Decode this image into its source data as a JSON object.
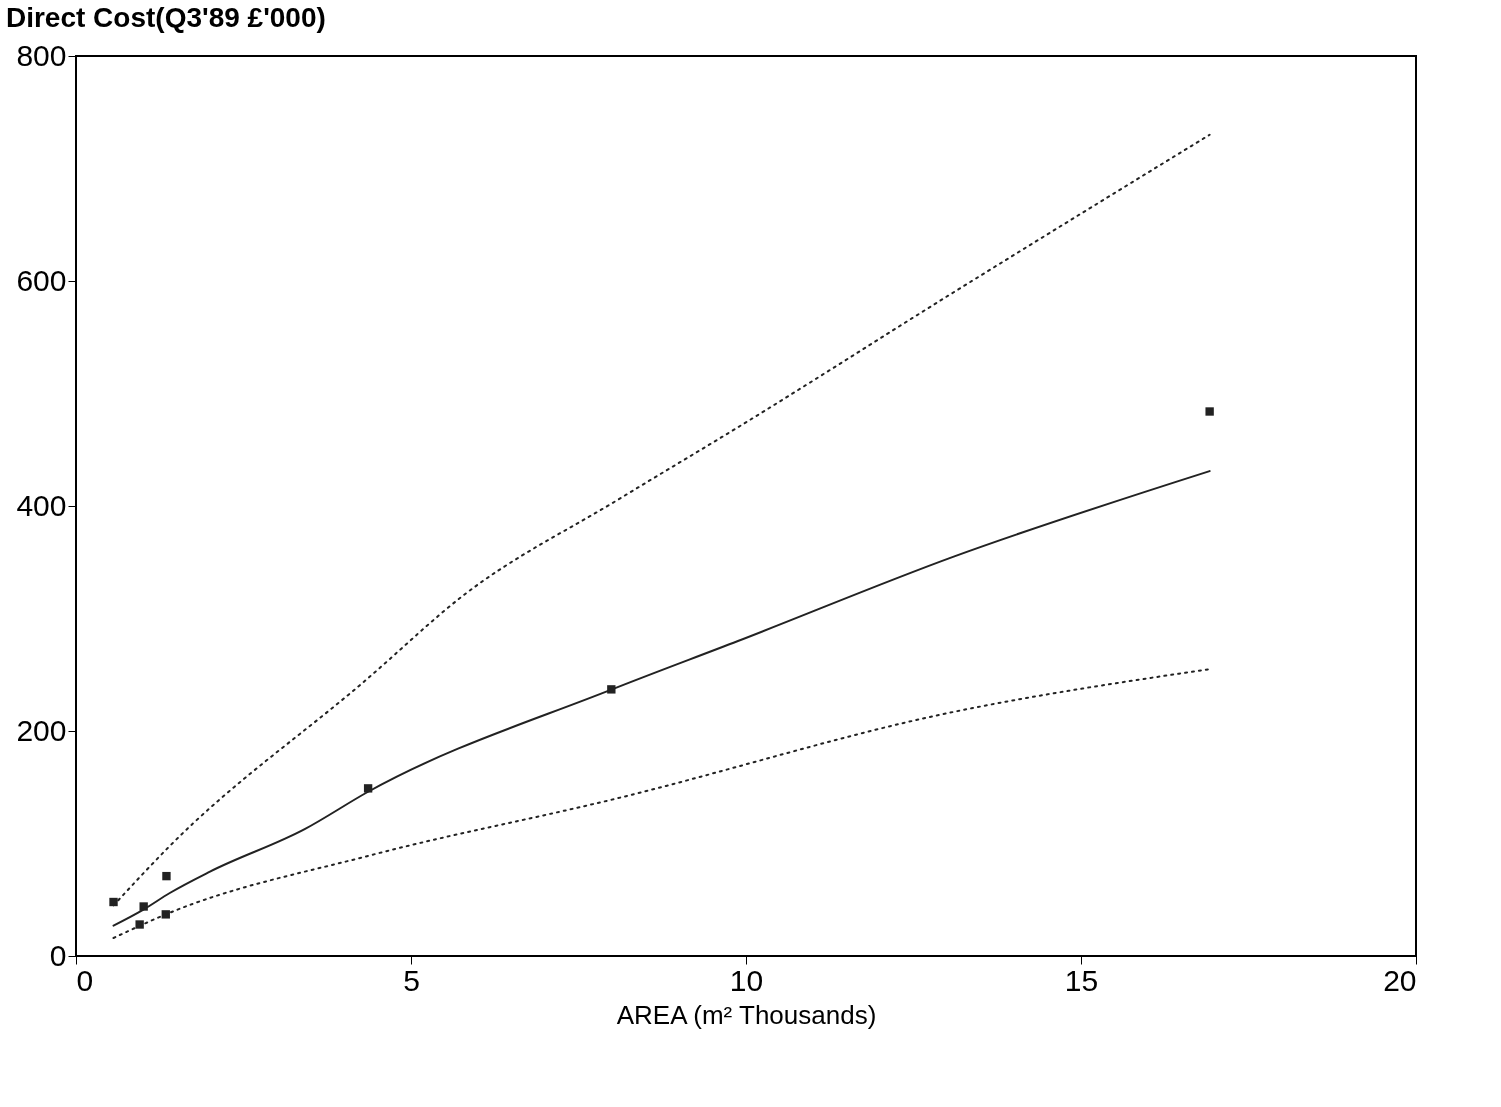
{
  "chart_data": {
    "type": "scatter",
    "ylabel": "Direct Cost(Q3'89 £'000)",
    "xlabel": "AREA   (m² Thousands)",
    "xlim": [
      0,
      20
    ],
    "xticks": [
      0,
      5,
      10,
      15,
      20
    ],
    "ylim": [
      0,
      800
    ],
    "yticks": [
      0,
      200,
      400,
      600,
      800
    ],
    "grid": false,
    "series": [
      {
        "marker": "square",
        "color": "#222222",
        "x": [
          0.56,
          0.95,
          1.01,
          1.34,
          1.35,
          4.36,
          7.99,
          16.92
        ],
        "values": [
          48,
          28,
          44,
          37,
          71,
          149,
          237,
          484
        ]
      },
      {
        "type": "line",
        "line_style": "solid",
        "color": "#222222",
        "x": [
          0.56,
          1.0,
          1.4,
          2.0,
          3.42,
          4.36,
          8.0,
          9.88,
          13.1,
          16.92
        ],
        "values": [
          27,
          41,
          56,
          75,
          113,
          146,
          237,
          280,
          355,
          431
        ]
      },
      {
        "type": "line",
        "line_style": "dotted",
        "color": "#222222",
        "x": [
          0.56,
          1.37,
          4.36,
          5.77,
          8.1,
          9.88,
          13.1,
          16.92
        ],
        "values": [
          45,
          96,
          247,
          320,
          406,
          470,
          590,
          730
        ]
      },
      {
        "type": "line",
        "line_style": "dotted",
        "color": "#222222",
        "x": [
          0.56,
          1.34,
          4.36,
          8.0,
          13.1,
          16.92
        ],
        "values": [
          16,
          37,
          89,
          139,
          217,
          255
        ]
      }
    ]
  }
}
